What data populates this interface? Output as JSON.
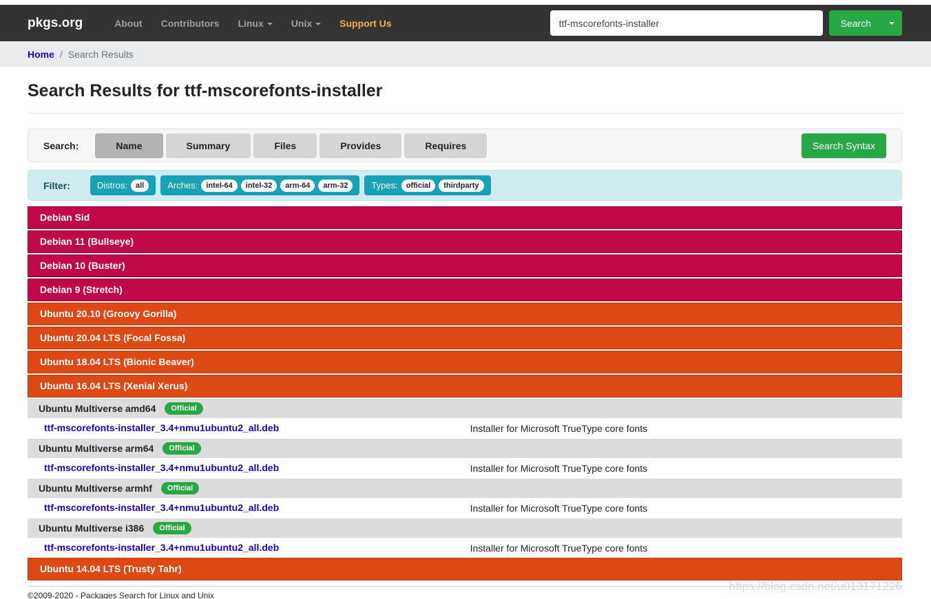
{
  "colors": {
    "navbar_bg": "#333333",
    "accent_green": "#28a745",
    "support_us": "#f0ad4e",
    "filter_teal": "#17a2b8",
    "filter_bg": "#d1ecf1",
    "debian_red": "#c00747",
    "ubuntu_orange": "#dd4814",
    "link_blue": "#2200bb",
    "official_green": "#28a745"
  },
  "navbar": {
    "brand": "pkgs.org",
    "links": [
      {
        "label": "About",
        "dropdown": false,
        "highlight": false
      },
      {
        "label": "Contributors",
        "dropdown": false,
        "highlight": false
      },
      {
        "label": "Linux",
        "dropdown": true,
        "highlight": false
      },
      {
        "label": "Unix",
        "dropdown": true,
        "highlight": false
      },
      {
        "label": "Support Us",
        "dropdown": false,
        "highlight": true
      }
    ],
    "search": {
      "value": "ttf-mscorefonts-installer",
      "button": "Search"
    }
  },
  "breadcrumb": {
    "home": "Home",
    "separator": "/",
    "current": "Search Results"
  },
  "page": {
    "title": "Search Results for ttf-mscorefonts-installer"
  },
  "search_panel": {
    "label": "Search:",
    "tabs": [
      {
        "label": "Name",
        "active": true
      },
      {
        "label": "Summary",
        "active": false
      },
      {
        "label": "Files",
        "active": false
      },
      {
        "label": "Provides",
        "active": false
      },
      {
        "label": "Requires",
        "active": false
      }
    ],
    "syntax_button": "Search Syntax"
  },
  "filter_panel": {
    "label": "Filter:",
    "groups": [
      {
        "label": "Distros:",
        "badges": [
          "all"
        ]
      },
      {
        "label": "Arches:",
        "badges": [
          "intel-64",
          "intel-32",
          "arm-64",
          "arm-32"
        ]
      },
      {
        "label": "Types:",
        "badges": [
          "official",
          "thirdparty"
        ]
      }
    ]
  },
  "results": [
    {
      "kind": "distro",
      "distro": "debian",
      "label": "Debian Sid"
    },
    {
      "kind": "distro",
      "distro": "debian",
      "label": "Debian 11 (Bullseye)"
    },
    {
      "kind": "distro",
      "distro": "debian",
      "label": "Debian 10 (Buster)"
    },
    {
      "kind": "distro",
      "distro": "debian",
      "label": "Debian 9 (Stretch)"
    },
    {
      "kind": "distro",
      "distro": "ubuntu",
      "label": "Ubuntu 20.10 (Groovy Gorilla)"
    },
    {
      "kind": "distro",
      "distro": "ubuntu",
      "label": "Ubuntu 20.04 LTS (Focal Fossa)"
    },
    {
      "kind": "distro",
      "distro": "ubuntu",
      "label": "Ubuntu 18.04 LTS (Bionic Beaver)"
    },
    {
      "kind": "distro",
      "distro": "ubuntu",
      "label": "Ubuntu 16.04 LTS (Xenial Xerus)"
    },
    {
      "kind": "repo",
      "label": "Ubuntu Multiverse amd64",
      "badge": "Official"
    },
    {
      "kind": "package",
      "file": "ttf-mscorefonts-installer_3.4+nmu1ubuntu2_all.deb",
      "description": "Installer for Microsoft TrueType core fonts"
    },
    {
      "kind": "repo",
      "label": "Ubuntu Multiverse arm64",
      "badge": "Official"
    },
    {
      "kind": "package",
      "file": "ttf-mscorefonts-installer_3.4+nmu1ubuntu2_all.deb",
      "description": "Installer for Microsoft TrueType core fonts"
    },
    {
      "kind": "repo",
      "label": "Ubuntu Multiverse armhf",
      "badge": "Official"
    },
    {
      "kind": "package",
      "file": "ttf-mscorefonts-installer_3.4+nmu1ubuntu2_all.deb",
      "description": "Installer for Microsoft TrueType core fonts"
    },
    {
      "kind": "repo",
      "label": "Ubuntu Multiverse i386",
      "badge": "Official"
    },
    {
      "kind": "package",
      "file": "ttf-mscorefonts-installer_3.4+nmu1ubuntu2_all.deb",
      "description": "Installer for Microsoft TrueType core fonts"
    },
    {
      "kind": "distro",
      "distro": "ubuntu",
      "label": "Ubuntu 14.04 LTS (Trusty Tahr)"
    }
  ],
  "footer": {
    "copyright": "©2009-2020 - Packages Search for Linux and Unix"
  },
  "watermark": "https://blog.csdn.net/u013171226"
}
